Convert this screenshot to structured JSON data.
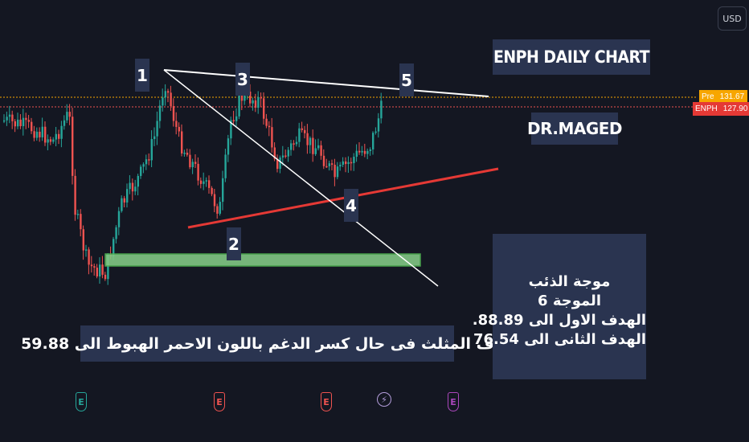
{
  "ui": {
    "currency_button": "USD",
    "price_tags": [
      {
        "symbol": "Pre",
        "value": "131.67",
        "symbol_color": "#f7a600",
        "value_color": "#f7a600"
      },
      {
        "symbol": "ENPH",
        "value": "127.90",
        "symbol_color": "#e53935",
        "value_color": "#e53935"
      }
    ]
  },
  "annotations": {
    "title": "ENPH  DAILY CHART",
    "author": "DR.MAGED",
    "wave_labels": [
      "1",
      "2",
      "3",
      "4",
      "5"
    ],
    "bottom_note": "هدف المثلث  فى حال كسر الدغم باللون الاحمر الهبوط الى 59.88",
    "side_note": [
      "موجة الذئب",
      "الموجة 6",
      "الهدف الاول الى  88.89.",
      "الهدف الثانى الى  76.54"
    ]
  },
  "event_markers": [
    {
      "icon": "earnings-icon",
      "glyph": "E",
      "color": "#26a69a"
    },
    {
      "icon": "earnings-icon",
      "glyph": "E",
      "color": "#ef5350"
    },
    {
      "icon": "earnings-icon",
      "glyph": "E",
      "color": "#ef5350"
    },
    {
      "icon": "dividend-icon",
      "glyph": "⚡",
      "color": "#b39ddb"
    },
    {
      "icon": "earnings-icon",
      "glyph": "E",
      "color": "#ab47bc"
    }
  ],
  "chart_data": {
    "type": "candlestick",
    "symbol": "ENPH",
    "timeframe": "Daily",
    "colors": {
      "up": "#26a69a",
      "down": "#ef5350",
      "background": "#141722",
      "support_zone": "#81c784",
      "trendline_red": "#e53935",
      "trendline_white": "#ffffff"
    },
    "pre_market_price": 131.67,
    "last_price": 127.9
  }
}
